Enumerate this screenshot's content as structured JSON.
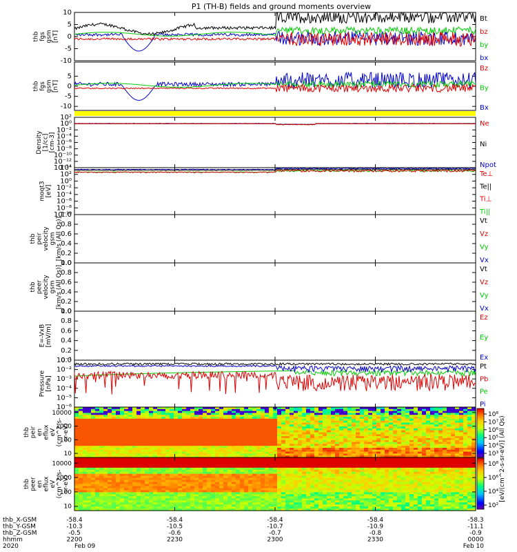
{
  "title": "P1 (TH-B) fields and ground moments overview",
  "colors": {
    "black": "#000000",
    "red": "#dd0000",
    "green": "#00cc00",
    "blue": "#0000cc",
    "yellow": "#ffff00"
  },
  "chart_data": [
    {
      "type": "line",
      "ylabel": [
        "thb",
        "fgs",
        "gsm",
        "[nT]"
      ],
      "ylim": [
        -10,
        10
      ],
      "yticks": [
        "10",
        "5",
        "0",
        "-5",
        "-10"
      ],
      "legend": [
        {
          "name": "Bt",
          "color": "black"
        },
        {
          "name": "bz",
          "color": "red"
        },
        {
          "name": "by",
          "color": "green"
        },
        {
          "name": "bx",
          "color": "blue"
        }
      ]
    },
    {
      "type": "line",
      "ylabel": [
        "thb",
        "fgs",
        "gsm",
        "[nT]"
      ],
      "ylim": [
        -12,
        12
      ],
      "yticks": [
        "5",
        "0",
        "-5",
        "-10"
      ],
      "legend": [
        {
          "name": "Bz",
          "color": "red"
        },
        {
          "name": "By",
          "color": "green"
        },
        {
          "name": "Bx",
          "color": "blue"
        }
      ]
    },
    {
      "type": "line",
      "ylabel": [
        "Density",
        "[1/cc]",
        "[cm-3]"
      ],
      "scale": "log",
      "ylim": [
        1e-14,
        100.0
      ],
      "yticks": [
        "10²",
        "10⁰",
        "10⁻²",
        "10⁻⁴",
        "10⁻⁶",
        "10⁻⁸",
        "10⁻¹⁰",
        "10⁻¹²",
        "10⁻¹⁴"
      ],
      "legend": [
        {
          "name": "Ne",
          "color": "red"
        },
        {
          "name": "Ni",
          "color": "black"
        },
        {
          "name": "Npot",
          "color": "blue"
        }
      ]
    },
    {
      "type": "line",
      "ylabel": [
        "moqt3",
        "[eV]"
      ],
      "scale": "log",
      "ylim": [
        1e-10,
        10000.0
      ],
      "yticks": [
        "10⁴",
        "10²",
        "10⁰",
        "10⁻²",
        "10⁻⁴",
        "10⁻⁶",
        "10⁻⁸",
        "10⁻¹⁰"
      ],
      "legend": [
        {
          "name": "Te⊥",
          "color": "red"
        },
        {
          "name": "Te||",
          "color": "black"
        },
        {
          "name": "Ti⊥",
          "color": "red"
        },
        {
          "name": "Ti||",
          "color": "green"
        }
      ]
    },
    {
      "type": "line",
      "ylabel": [
        "thb",
        "peir",
        "velocity",
        "gsm",
        "[km/s (All Qs)]"
      ],
      "ylim": [
        0,
        1
      ],
      "yticks": [
        "1.0",
        "0.8",
        "0.6",
        "0.4",
        "0.2",
        "0.0"
      ],
      "legend": [
        {
          "name": "Vt",
          "color": "black"
        },
        {
          "name": "Vz",
          "color": "red"
        },
        {
          "name": "Vy",
          "color": "green"
        },
        {
          "name": "Vx",
          "color": "blue"
        }
      ]
    },
    {
      "type": "line",
      "ylabel": [
        "thb",
        "peer",
        "velocity",
        "gsm",
        "[km/s (All Qs)]"
      ],
      "ylim": [
        0,
        1
      ],
      "yticks": [
        "1.0",
        "0.8",
        "0.6",
        "0.4",
        "0.2",
        "0.0"
      ],
      "legend": [
        {
          "name": "Vt",
          "color": "black"
        },
        {
          "name": "Vz",
          "color": "red"
        },
        {
          "name": "Vy",
          "color": "green"
        },
        {
          "name": "Vx",
          "color": "blue"
        }
      ]
    },
    {
      "type": "line",
      "ylabel": [
        "E=-VxB",
        "[mV/m]"
      ],
      "ylim": [
        0,
        1
      ],
      "yticks": [
        "1.0",
        "0.8",
        "0.6",
        "0.4",
        "0.2",
        "0.0"
      ],
      "legend": [
        {
          "name": "Ez",
          "color": "red"
        },
        {
          "name": "Ey",
          "color": "green"
        },
        {
          "name": "Ex",
          "color": "blue"
        }
      ]
    },
    {
      "type": "line",
      "ylabel": [
        "Pressure",
        "[nPa]"
      ],
      "scale": "log",
      "ylim": [
        1e-06,
        0.1
      ],
      "yticks": [
        "10⁻¹",
        "10⁻²",
        "10⁻³",
        "10⁻⁴",
        "10⁻⁵",
        "10⁻⁶"
      ],
      "legend": [
        {
          "name": "Pt",
          "color": "black"
        },
        {
          "name": "Pb",
          "color": "red"
        },
        {
          "name": "Pe",
          "color": "green"
        },
        {
          "name": "Pi",
          "color": "blue"
        }
      ]
    },
    {
      "type": "heatmap",
      "ylabel": [
        "thb",
        "peir",
        "en",
        "eflux",
        "eV",
        "(cm^2-s-",
        "sr-eV)"
      ],
      "scale": "log",
      "ylim": [
        5,
        25000
      ],
      "yticks": [
        "10000",
        "1000",
        "100",
        "10"
      ]
    },
    {
      "type": "heatmap",
      "ylabel": [
        "thb",
        "peer",
        "en",
        "eflux",
        "eV",
        "(cm^2-s-",
        "sr-eV)"
      ],
      "scale": "log",
      "ylim": [
        5,
        25000
      ],
      "yticks": [
        "10000",
        "1000",
        "100",
        "10"
      ]
    }
  ],
  "colorbars": [
    {
      "label": "[eV/(cm^2-s-sr-eV)] (All Qs)",
      "ticks": [
        "10⁸",
        "10⁷",
        "10⁶",
        "10⁵",
        "10⁴",
        "10³"
      ]
    },
    {
      "label": "[eV/(cm^2-s-sr-eV)] (All Qs)",
      "ticks": [
        "10⁸",
        "10⁶",
        "10⁴",
        "10²"
      ]
    }
  ],
  "xaxis": {
    "rows": [
      {
        "label": "thb_X-GSM",
        "values": [
          "-58.4",
          "-58.4",
          "-58.4",
          "-58.4",
          "-58.3"
        ]
      },
      {
        "label": "thb_Y-GSM",
        "values": [
          "-10.3",
          "-10.5",
          "-10.7",
          "-10.9",
          "-11.1"
        ]
      },
      {
        "label": "thb_Z-GSM",
        "values": [
          "-0.5",
          "-0.6",
          "-0.7",
          "-0.8",
          "-0.9"
        ]
      },
      {
        "label": "hhmm",
        "values": [
          "2200",
          "2230",
          "2300",
          "2330",
          "0000"
        ]
      },
      {
        "label": "2020",
        "values": [
          "Feb 09",
          "",
          "",
          "",
          "Feb 10"
        ]
      }
    ]
  }
}
